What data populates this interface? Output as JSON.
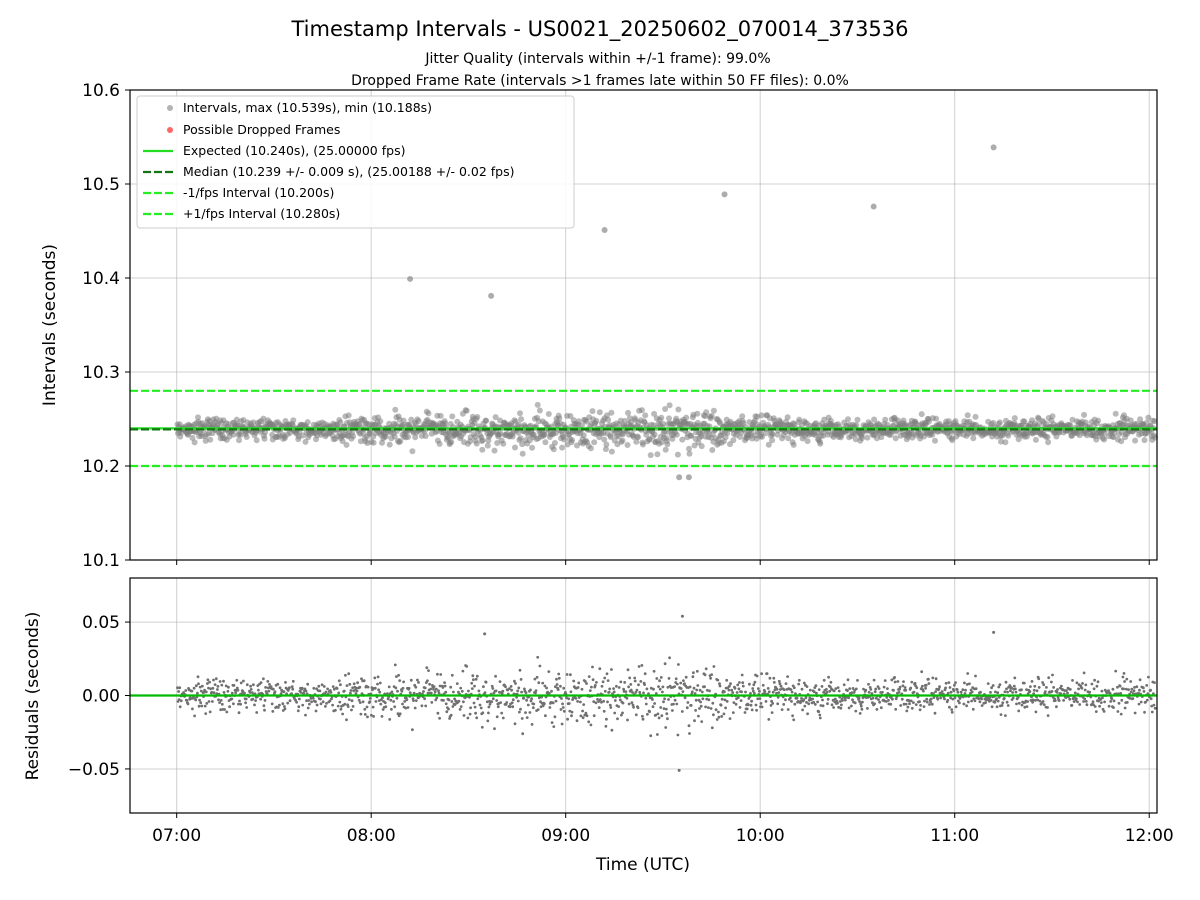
{
  "chart_data": [
    {
      "type": "scatter",
      "title": "Timestamp Intervals - US0021_20250602_070014_373536",
      "subtitles": [
        "Jitter Quality (intervals within +/-1 frame): 99.0%",
        "Dropped Frame Rate (intervals >1 frames late within 50 FF files): 0.0%"
      ],
      "xlabel": "",
      "ylabel": "Intervals (seconds)",
      "ylim": [
        10.1,
        10.6
      ],
      "yticks": [
        "10.1",
        "10.2",
        "10.3",
        "10.4",
        "10.5",
        "10.6"
      ],
      "xlim_hours": [
        6.76,
        12.04
      ],
      "grid": true,
      "legend_placement": "top-left",
      "legend": [
        "Intervals, max (10.539s), min (10.188s)",
        "Possible Dropped Frames",
        "Expected (10.240s), (25.00000 fps)",
        "Median (10.239 +/- 0.009 s), (25.00188 +/- 0.02 fps)",
        "-1/fps Interval (10.200s)",
        "+1/fps Interval (10.280s)"
      ],
      "reference_lines": [
        {
          "name": "Expected",
          "y": 10.24,
          "style": "solid",
          "color": "#22dd22"
        },
        {
          "name": "Median",
          "y": 10.239,
          "style": "dashed",
          "color": "#117711"
        },
        {
          "name": "-1/fps",
          "y": 10.2,
          "style": "dashed",
          "color": "#22ee22"
        },
        {
          "name": "+1/fps",
          "y": 10.28,
          "style": "dashed",
          "color": "#22ee22"
        }
      ],
      "band": {
        "center": 10.239,
        "spread": 0.009
      },
      "outliers": [
        {
          "x": "08:12",
          "y": 10.399
        },
        {
          "x": "08:37",
          "y": 10.381
        },
        {
          "x": "09:12",
          "y": 10.451
        },
        {
          "x": "09:49",
          "y": 10.489
        },
        {
          "x": "10:35",
          "y": 10.476
        },
        {
          "x": "11:12",
          "y": 10.539
        },
        {
          "x": "09:35",
          "y": 10.188
        },
        {
          "x": "09:38",
          "y": 10.188
        }
      ],
      "colors": {
        "points": "#808080",
        "dropped": "#ff6666"
      }
    },
    {
      "type": "scatter",
      "xlabel": "Time (UTC)",
      "ylabel": "Residuals (seconds)",
      "ylim": [
        -0.08,
        0.08
      ],
      "yticks": [
        "−0.05",
        "0.00",
        "0.05"
      ],
      "xticks": [
        "07:00",
        "08:00",
        "09:00",
        "10:00",
        "11:00",
        "12:00"
      ],
      "xlim_hours": [
        6.76,
        12.04
      ],
      "grid": true,
      "zero_line": {
        "y": 0.0,
        "color": "#00bb00"
      },
      "outliers": [
        {
          "x": "09:36",
          "y": 0.054
        },
        {
          "x": "09:35",
          "y": -0.051
        },
        {
          "x": "11:12",
          "y": 0.043
        },
        {
          "x": "08:35",
          "y": 0.042
        }
      ],
      "colors": {
        "points": "#707070"
      }
    }
  ]
}
